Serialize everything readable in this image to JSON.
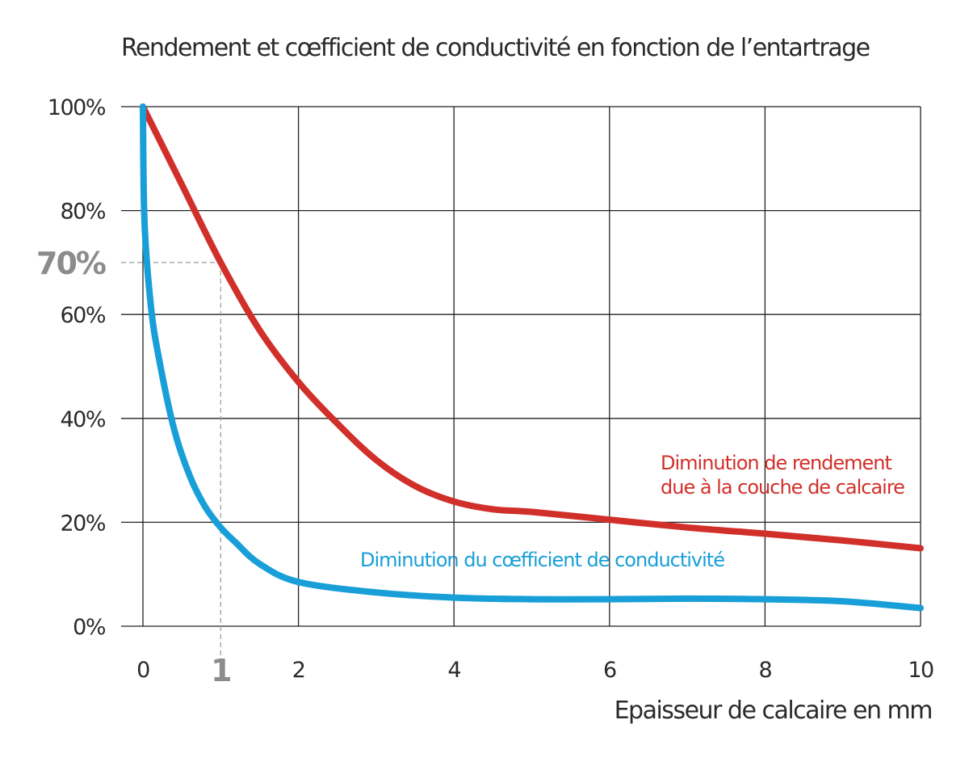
{
  "chart_data": {
    "type": "line",
    "title": "Rendement et cœfficient de conductivité en fonction de l’entartrage",
    "xlabel": "Epaisseur de calcaire en mm",
    "ylabel": "",
    "xlim": [
      0,
      10
    ],
    "ylim": [
      0,
      100
    ],
    "x_ticks": [
      0,
      2,
      4,
      6,
      8,
      10
    ],
    "x_tick_labels": [
      "0",
      "2",
      "4",
      "6",
      "8",
      "10"
    ],
    "y_ticks": [
      0,
      20,
      40,
      60,
      80,
      100
    ],
    "y_tick_labels": [
      "0%",
      "20%",
      "40%",
      "60%",
      "80%",
      "100%"
    ],
    "grid": true,
    "series": [
      {
        "name": "Diminution de rendement due à la couche de calcaire",
        "name_lines": [
          "Diminution de rendement",
          "due à la couche de calcaire"
        ],
        "color": "#d1302a",
        "x": [
          0,
          0.5,
          1,
          1.5,
          2,
          2.5,
          3,
          3.5,
          4,
          4.5,
          5,
          6,
          7,
          8,
          9,
          10
        ],
        "y": [
          100,
          85,
          70,
          57,
          47,
          39,
          32,
          27,
          24,
          22.5,
          22,
          20.5,
          19,
          17.8,
          16.5,
          15
        ]
      },
      {
        "name": "Diminution du cœfficient de conductivité",
        "color": "#189fd8",
        "x": [
          0,
          0.02,
          0.1,
          0.2,
          0.4,
          0.6,
          0.8,
          1,
          1.2,
          1.5,
          2,
          3,
          4,
          5,
          6,
          7,
          8,
          9,
          10
        ],
        "y": [
          100,
          78,
          62,
          52,
          38,
          29,
          23,
          19,
          16,
          12,
          8.5,
          6.5,
          5.5,
          5.2,
          5.2,
          5.3,
          5.2,
          4.8,
          3.5
        ]
      }
    ],
    "highlight": {
      "x": 1,
      "y": 70,
      "x_label": "1",
      "y_label": "70%",
      "color": "#8c8c8c"
    }
  }
}
